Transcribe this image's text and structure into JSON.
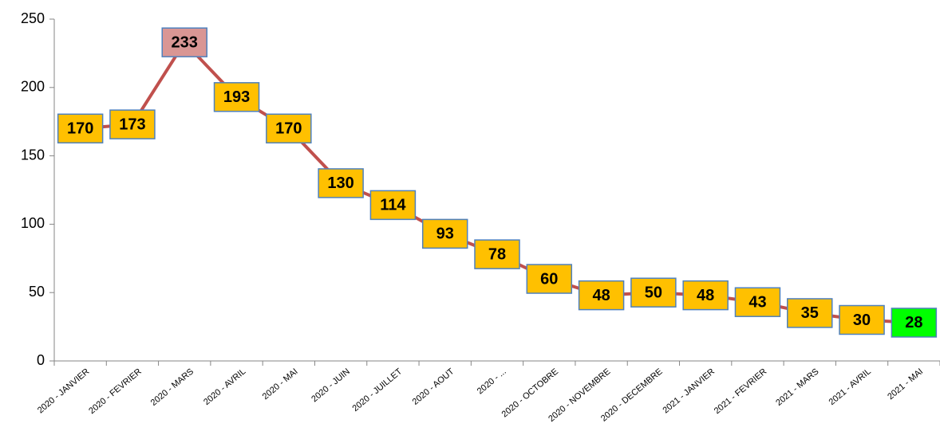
{
  "chart_data": {
    "type": "line",
    "categories": [
      "2020 - JANVIER",
      "2020 - FEVRIER",
      "2020 - MARS",
      "2020 - AVRIL",
      "2020 - MAI",
      "2020 - JUIN",
      "2020 - JUILLET",
      "2020 - AOUT",
      "2020 - ...",
      "2020 - OCTOBRE",
      "2020 - NOVEMBRE",
      "2020 - DECEMBRE",
      "2021 - JANVIER",
      "2021 - FEVRIER",
      "2021 - MARS",
      "2021 - AVRIL",
      "2021 - MAI"
    ],
    "values": [
      170,
      173,
      233,
      193,
      170,
      130,
      114,
      93,
      78,
      60,
      48,
      50,
      48,
      43,
      35,
      30,
      28
    ],
    "color": "#c0504d",
    "label_colors": [
      "#ffc000",
      "#ffc000",
      "#d99694",
      "#ffc000",
      "#ffc000",
      "#ffc000",
      "#ffc000",
      "#ffc000",
      "#ffc000",
      "#ffc000",
      "#ffc000",
      "#ffc000",
      "#ffc000",
      "#ffc000",
      "#ffc000",
      "#ffc000",
      "#00ff00"
    ],
    "ylim": [
      0,
      250
    ],
    "yticks": [
      0,
      50,
      100,
      150,
      200,
      250
    ]
  }
}
